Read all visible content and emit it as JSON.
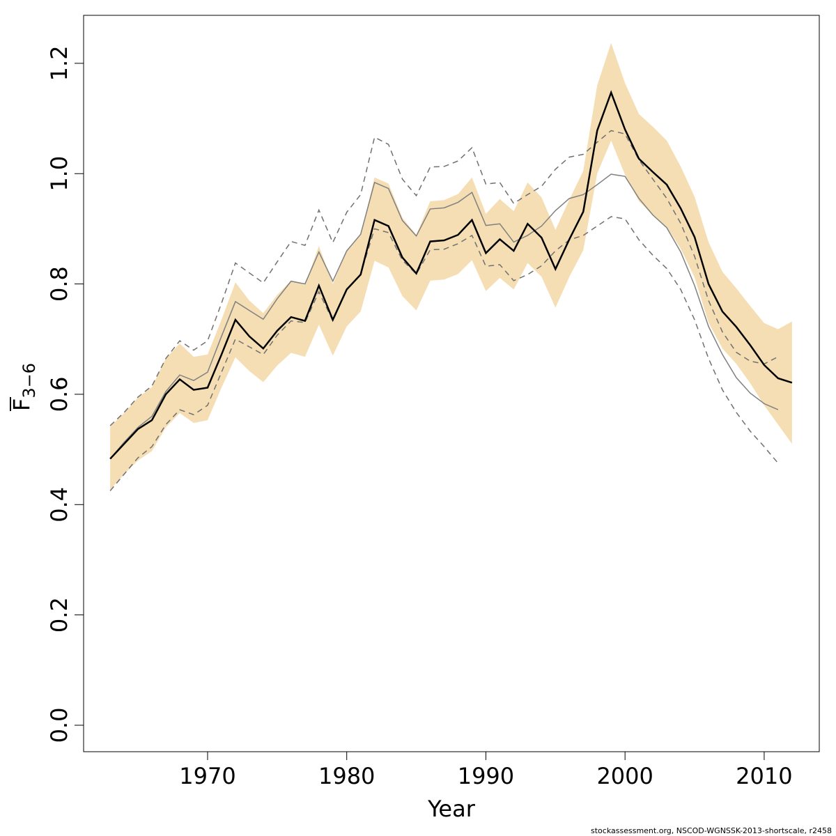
{
  "chart_data": {
    "type": "line",
    "xlabel": "Year",
    "ylabel": "F",
    "ylabel_sub": "3−6",
    "footer": "stockassessment.org, NSCOD-WGNSSK-2013-shortscale, r2458",
    "xlim": [
      1961.09,
      2013.96
    ],
    "ylim": [
      -0.048,
      1.287
    ],
    "xticks": [
      1970,
      1980,
      1990,
      2000,
      2010
    ],
    "yticks": [
      {
        "value": 0,
        "label": "0.0"
      },
      0.2,
      0.4,
      0.6,
      0.8,
      {
        "value": 1,
        "label": "1.0"
      },
      1.2
    ],
    "x": [
      1963,
      1964,
      1965,
      1966,
      1967,
      1968,
      1969,
      1970,
      1971,
      1972,
      1973,
      1974,
      1975,
      1976,
      1977,
      1978,
      1979,
      1980,
      1981,
      1982,
      1983,
      1984,
      1985,
      1986,
      1987,
      1988,
      1989,
      1990,
      1991,
      1992,
      1993,
      1994,
      1995,
      1996,
      1997,
      1998,
      1999,
      2000,
      2001,
      2002,
      2003,
      2004,
      2005,
      2006,
      2007,
      2008,
      2009,
      2010,
      2011,
      2012
    ],
    "band": {
      "color": "#f5deb3",
      "upper": [
        0.541,
        0.566,
        0.594,
        0.613,
        0.665,
        0.692,
        0.668,
        0.672,
        0.735,
        0.803,
        0.77,
        0.747,
        0.78,
        0.806,
        0.798,
        0.869,
        0.8,
        0.86,
        0.889,
        0.993,
        0.982,
        0.92,
        0.889,
        0.95,
        0.952,
        0.963,
        0.993,
        0.927,
        0.954,
        0.932,
        0.984,
        0.957,
        0.898,
        0.953,
        1.005,
        1.16,
        1.237,
        1.164,
        1.108,
        1.085,
        1.06,
        1.013,
        0.958,
        0.876,
        0.822,
        0.792,
        0.76,
        0.729,
        0.718,
        0.732
      ],
      "lower": [
        0.427,
        0.455,
        0.48,
        0.497,
        0.54,
        0.566,
        0.548,
        0.553,
        0.612,
        0.667,
        0.642,
        0.622,
        0.652,
        0.675,
        0.668,
        0.726,
        0.67,
        0.723,
        0.75,
        0.842,
        0.83,
        0.778,
        0.752,
        0.806,
        0.808,
        0.818,
        0.843,
        0.787,
        0.811,
        0.79,
        0.838,
        0.813,
        0.757,
        0.813,
        0.861,
        1.0,
        1.06,
        0.998,
        0.95,
        0.925,
        0.903,
        0.864,
        0.812,
        0.73,
        0.683,
        0.655,
        0.62,
        0.58,
        0.545,
        0.51
      ]
    },
    "series": [
      {
        "color": "#808080",
        "width": 1.5,
        "dash": false,
        "values": [
          0.483,
          0.513,
          0.54,
          0.56,
          0.605,
          0.635,
          0.625,
          0.64,
          0.705,
          0.768,
          0.752,
          0.736,
          0.773,
          0.805,
          0.8,
          0.858,
          0.805,
          0.86,
          0.89,
          0.984,
          0.973,
          0.915,
          0.887,
          0.936,
          0.938,
          0.948,
          0.966,
          0.906,
          0.909,
          0.876,
          0.888,
          0.905,
          0.933,
          0.955,
          0.962,
          0.98,
          0.999,
          0.995,
          0.955,
          0.925,
          0.902,
          0.858,
          0.797,
          0.723,
          0.672,
          0.63,
          0.602,
          0.583,
          0.572,
          null
        ]
      },
      {
        "color": "#707070",
        "width": 1.5,
        "dash": true,
        "values": [
          0.543,
          0.567,
          0.595,
          0.615,
          0.665,
          0.697,
          0.68,
          0.697,
          0.765,
          0.838,
          0.82,
          0.802,
          0.84,
          0.877,
          0.87,
          0.934,
          0.875,
          0.93,
          0.962,
          1.066,
          1.053,
          0.99,
          0.96,
          1.012,
          1.013,
          1.023,
          1.047,
          0.981,
          0.984,
          0.946,
          0.962,
          0.977,
          1.008,
          1.03,
          1.035,
          1.057,
          1.078,
          1.072,
          1.025,
          0.99,
          0.955,
          0.91,
          0.85,
          0.77,
          0.713,
          0.676,
          0.66,
          0.655,
          0.668,
          null
        ]
      },
      {
        "color": "#707070",
        "width": 1.5,
        "dash": true,
        "values": [
          0.425,
          0.455,
          0.485,
          0.505,
          0.545,
          0.572,
          0.563,
          0.58,
          0.64,
          0.7,
          0.686,
          0.672,
          0.707,
          0.733,
          0.73,
          0.786,
          0.733,
          0.79,
          0.818,
          0.9,
          0.893,
          0.843,
          0.818,
          0.862,
          0.863,
          0.873,
          0.888,
          0.832,
          0.835,
          0.806,
          0.817,
          0.833,
          0.86,
          0.88,
          0.888,
          0.905,
          0.922,
          0.918,
          0.88,
          0.852,
          0.828,
          0.79,
          0.735,
          0.665,
          0.608,
          0.567,
          0.533,
          0.505,
          0.475,
          null
        ]
      },
      {
        "color": "#000000",
        "width": 2.5,
        "dash": false,
        "values": [
          0.483,
          0.51,
          0.537,
          0.553,
          0.6,
          0.627,
          0.608,
          0.612,
          0.672,
          0.735,
          0.705,
          0.683,
          0.715,
          0.74,
          0.733,
          0.797,
          0.735,
          0.79,
          0.817,
          0.916,
          0.905,
          0.848,
          0.819,
          0.877,
          0.879,
          0.889,
          0.916,
          0.856,
          0.881,
          0.86,
          0.909,
          0.884,
          0.827,
          0.881,
          0.931,
          1.078,
          1.147,
          1.08,
          1.027,
          1.003,
          0.98,
          0.937,
          0.885,
          0.8,
          0.75,
          0.722,
          0.689,
          0.653,
          0.629,
          0.621
        ]
      }
    ]
  }
}
